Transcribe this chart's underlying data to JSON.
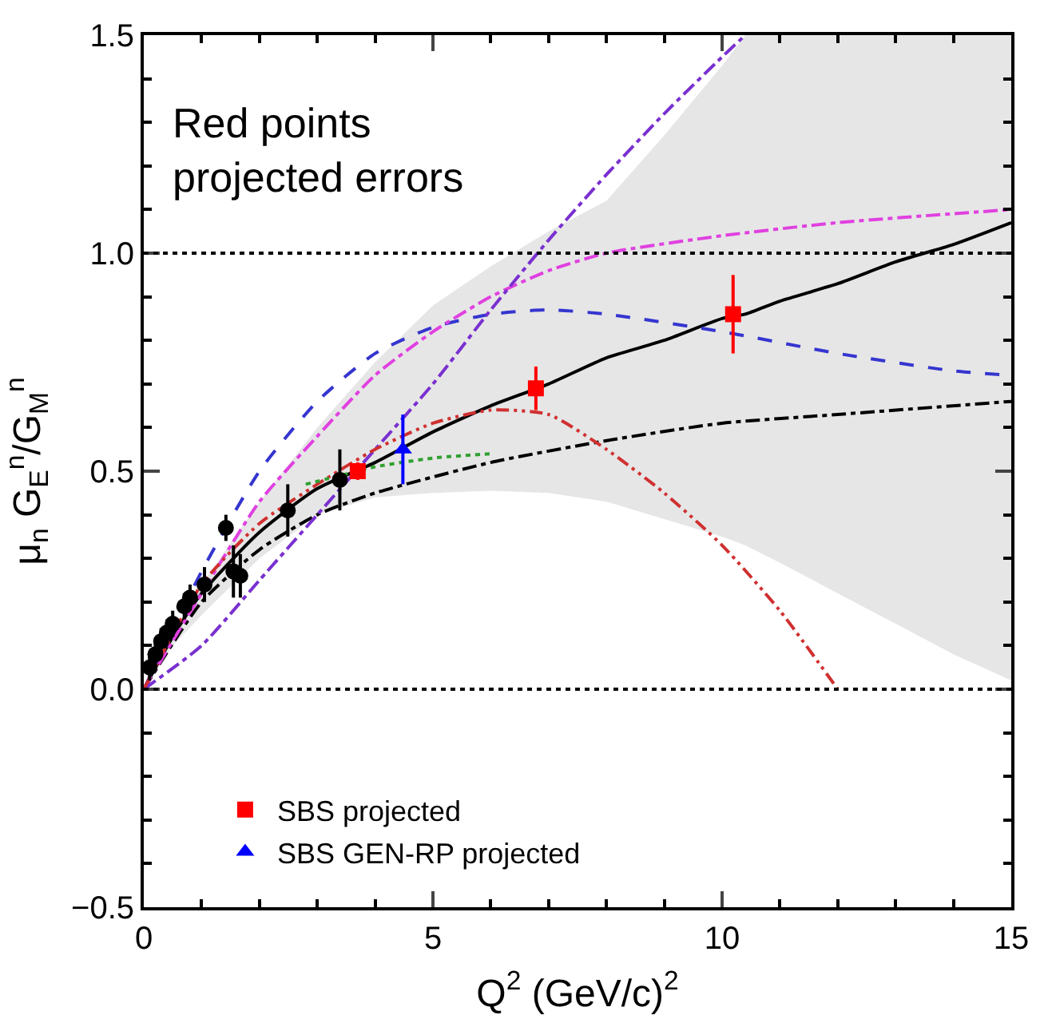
{
  "chart_data": {
    "type": "line",
    "xlabel": "Q$^{2}$ (GeV/c)$^{2}$",
    "ylabel": "μ$_{n}$ G$_{E}$$^{n}$/G$_{M}$$^{n}$",
    "xlim": [
      0,
      15
    ],
    "xticks": [
      0,
      5,
      10,
      15
    ],
    "ylim": [
      -0.5,
      1.5
    ],
    "yticks": [
      {
        "value": -0.5,
        "label": "−0.5"
      },
      {
        "value": 0,
        "label": "0.0"
      },
      0.5,
      {
        "value": 1,
        "label": "1.0"
      },
      1.5
    ],
    "legend": "bottom left",
    "ref_lines": [
      {
        "axis": "y",
        "value": 0,
        "color": "#000000",
        "line_style": "dotted"
      },
      {
        "axis": "y",
        "value": 1,
        "color": "#000000",
        "line_style": "dotted"
      }
    ],
    "annotations": [
      "Red points\nprojected errors"
    ],
    "series": [
      {
        "color": "#000000",
        "line_style": "solid",
        "marker": "none",
        "x": [
          0,
          0.5,
          1,
          2,
          3,
          4,
          5,
          6,
          7,
          8,
          9,
          10,
          10.4,
          11,
          12,
          13,
          14,
          15
        ],
        "values": [
          0,
          0.12,
          0.22,
          0.36,
          0.46,
          0.52,
          0.59,
          0.65,
          0.7,
          0.76,
          0.8,
          0.85,
          0.86,
          0.89,
          0.93,
          0.98,
          1.02,
          1.07
        ],
        "lower": [
          0,
          0.1,
          0.17,
          0.3,
          0.4,
          0.44,
          0.45,
          0.455,
          0.45,
          0.43,
          0.39,
          0.35,
          0.33,
          0.29,
          0.22,
          0.15,
          0.08,
          0.02
        ],
        "upper": [
          0,
          0.12,
          0.24,
          0.43,
          0.6,
          0.75,
          0.88,
          0.97,
          1.05,
          1.12,
          1.27,
          1.43,
          1.5,
          1.5,
          1.5,
          1.5,
          1.5,
          1.5
        ]
      },
      {
        "color": "#000000",
        "line_style": "dashdot",
        "marker": "none",
        "x": [
          0,
          1,
          2,
          3,
          4,
          6,
          8,
          10,
          12,
          15
        ],
        "values": [
          0,
          0.2,
          0.32,
          0.4,
          0.45,
          0.52,
          0.57,
          0.61,
          0.63,
          0.66
        ]
      },
      {
        "color": "#3535d0",
        "line_style": "dashed",
        "marker": "none",
        "x": [
          0,
          1,
          2,
          3,
          4,
          5,
          6,
          7,
          8,
          10,
          12,
          14,
          15
        ],
        "values": [
          0,
          0.27,
          0.5,
          0.66,
          0.77,
          0.83,
          0.86,
          0.87,
          0.86,
          0.82,
          0.77,
          0.73,
          0.72
        ]
      },
      {
        "color": "#e040e0",
        "line_style": "dashdot",
        "marker": "none",
        "x": [
          0,
          1,
          2,
          3,
          4,
          5,
          6,
          7,
          8,
          10,
          12,
          15
        ],
        "values": [
          0,
          0.22,
          0.43,
          0.58,
          0.72,
          0.82,
          0.9,
          0.96,
          1.0,
          1.04,
          1.07,
          1.1
        ]
      },
      {
        "color": "#7a30d0",
        "line_style": "dashdot",
        "marker": "none",
        "x": [
          0,
          1,
          2,
          3,
          4,
          5,
          6,
          7,
          8,
          9,
          10,
          10.4
        ],
        "values": [
          0,
          0.1,
          0.25,
          0.4,
          0.55,
          0.7,
          0.87,
          1.03,
          1.18,
          1.32,
          1.45,
          1.5
        ]
      },
      {
        "color": "#d03030",
        "line_style": "dashdotdot",
        "marker": "none",
        "x": [
          0,
          1,
          2,
          3,
          4,
          5,
          6,
          7,
          8,
          9,
          10,
          11,
          12
        ],
        "values": [
          0,
          0.24,
          0.38,
          0.47,
          0.55,
          0.61,
          0.64,
          0.63,
          0.55,
          0.45,
          0.33,
          0.18,
          0
        ]
      },
      {
        "color": "#30a030",
        "line_style": "dotted",
        "marker": "none",
        "x": [
          2.8,
          3.4,
          4,
          5,
          6
        ],
        "values": [
          0.47,
          0.49,
          0.51,
          0.53,
          0.54
        ]
      },
      {
        "type": "scatter",
        "color": "#000000",
        "marker": "circle",
        "x": [
          0.1,
          0.2,
          0.3,
          0.4,
          0.5,
          0.7,
          0.8,
          1.05,
          1.42,
          1.55,
          1.67,
          2.49,
          3.39
        ],
        "values": [
          0.05,
          0.08,
          0.11,
          0.13,
          0.15,
          0.19,
          0.21,
          0.24,
          0.37,
          0.27,
          0.26,
          0.41,
          0.48
        ],
        "errors": [
          0.03,
          0.03,
          0.03,
          0.03,
          0.03,
          0.03,
          0.03,
          0.04,
          0.03,
          0.06,
          0.05,
          0.06,
          0.07
        ]
      },
      {
        "type": "scatter",
        "name": "SBS projected",
        "color": "#ff0000",
        "marker": "square",
        "x": [
          3.7,
          6.78,
          10.19
        ],
        "values": [
          0.5,
          0.69,
          0.86
        ],
        "errors": [
          0.02,
          0.05,
          0.09
        ]
      },
      {
        "type": "scatter",
        "name": "SBS GEN-RP projected",
        "color": "#0000ff",
        "marker": "triangle",
        "x": [
          4.48
        ],
        "values": [
          0.55
        ],
        "errors": [
          0.08
        ]
      }
    ]
  }
}
